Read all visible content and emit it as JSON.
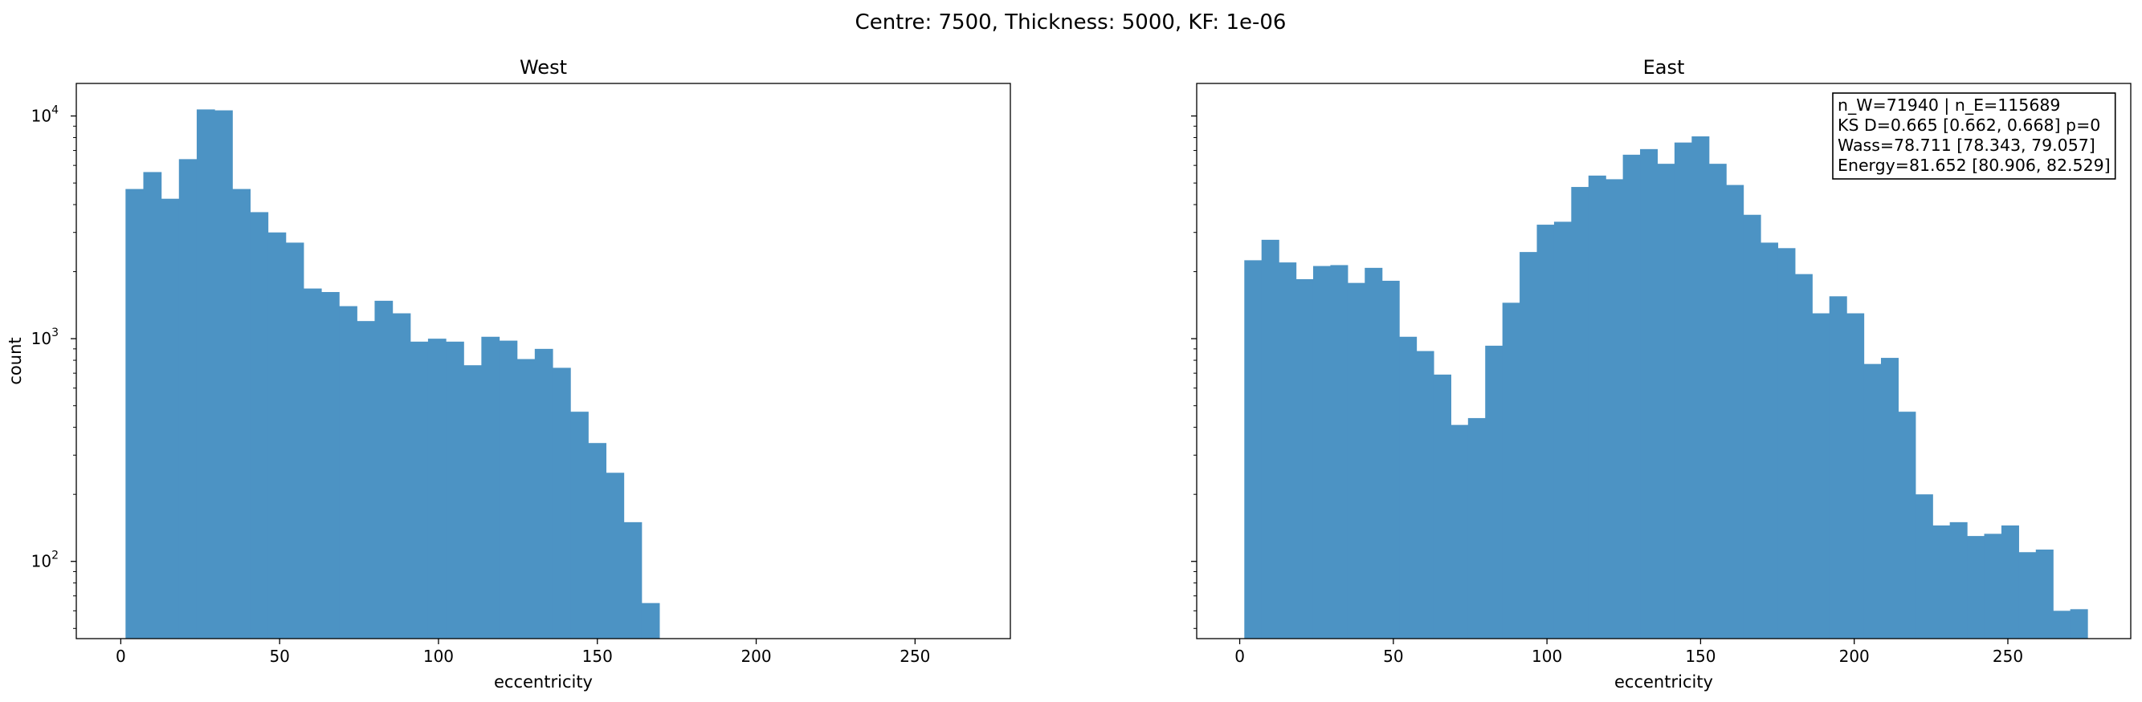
{
  "figure": {
    "title": "Centre: 7500, Thickness: 5000, KF: 1e-06"
  },
  "chart_data": [
    {
      "type": "bar",
      "subtype": "histogram",
      "title": "West",
      "xlabel": "eccentricity",
      "ylabel": "count",
      "xlim": [
        -14,
        280
      ],
      "ylim": [
        45,
        14000
      ],
      "yscale": "log",
      "x_ticks": [
        0,
        50,
        100,
        150,
        200,
        250
      ],
      "x_tick_labels": [
        "0",
        "50",
        "100",
        "150",
        "200",
        "250"
      ],
      "y_ticks": [
        100,
        1000,
        10000
      ],
      "y_tick_labels": [
        [
          "10",
          "2"
        ],
        [
          "10",
          "3"
        ],
        [
          "10",
          "4"
        ]
      ],
      "bin_start": 1.5,
      "bin_width": 5.6,
      "values": [
        4700,
        5600,
        4250,
        6400,
        10700,
        10600,
        4700,
        3700,
        3000,
        2700,
        1680,
        1620,
        1400,
        1200,
        1480,
        1300,
        970,
        1000,
        970,
        760,
        1020,
        980,
        810,
        900,
        740,
        470,
        340,
        250,
        150,
        65
      ],
      "color": "#4c93c4"
    },
    {
      "type": "bar",
      "subtype": "histogram",
      "title": "East",
      "xlabel": "eccentricity",
      "ylabel": "",
      "xlim": [
        -14,
        290
      ],
      "ylim": [
        45,
        14000
      ],
      "yscale": "log",
      "x_ticks": [
        0,
        50,
        100,
        150,
        200,
        250
      ],
      "x_tick_labels": [
        "0",
        "50",
        "100",
        "150",
        "200",
        "250"
      ],
      "bin_start": 1.5,
      "bin_width": 5.6,
      "values": [
        2250,
        2780,
        2200,
        1850,
        2120,
        2140,
        1780,
        2080,
        1820,
        1020,
        880,
        690,
        410,
        440,
        930,
        1450,
        2450,
        3250,
        3350,
        4800,
        5400,
        5200,
        6700,
        7100,
        6100,
        7600,
        8100,
        6100,
        4900,
        3600,
        2700,
        2550,
        1950,
        1300,
        1550,
        1300,
        770,
        820,
        470,
        200,
        145,
        150,
        130,
        133,
        145,
        110,
        113,
        60,
        61
      ],
      "color": "#4c93c4",
      "stats_box": [
        "n_W=71940 | n_E=115689",
        "KS D=0.665 [0.662, 0.668]  p=0",
        "Wass=78.711 [78.343, 79.057]",
        "Energy=81.652 [80.906, 82.529]"
      ]
    }
  ]
}
